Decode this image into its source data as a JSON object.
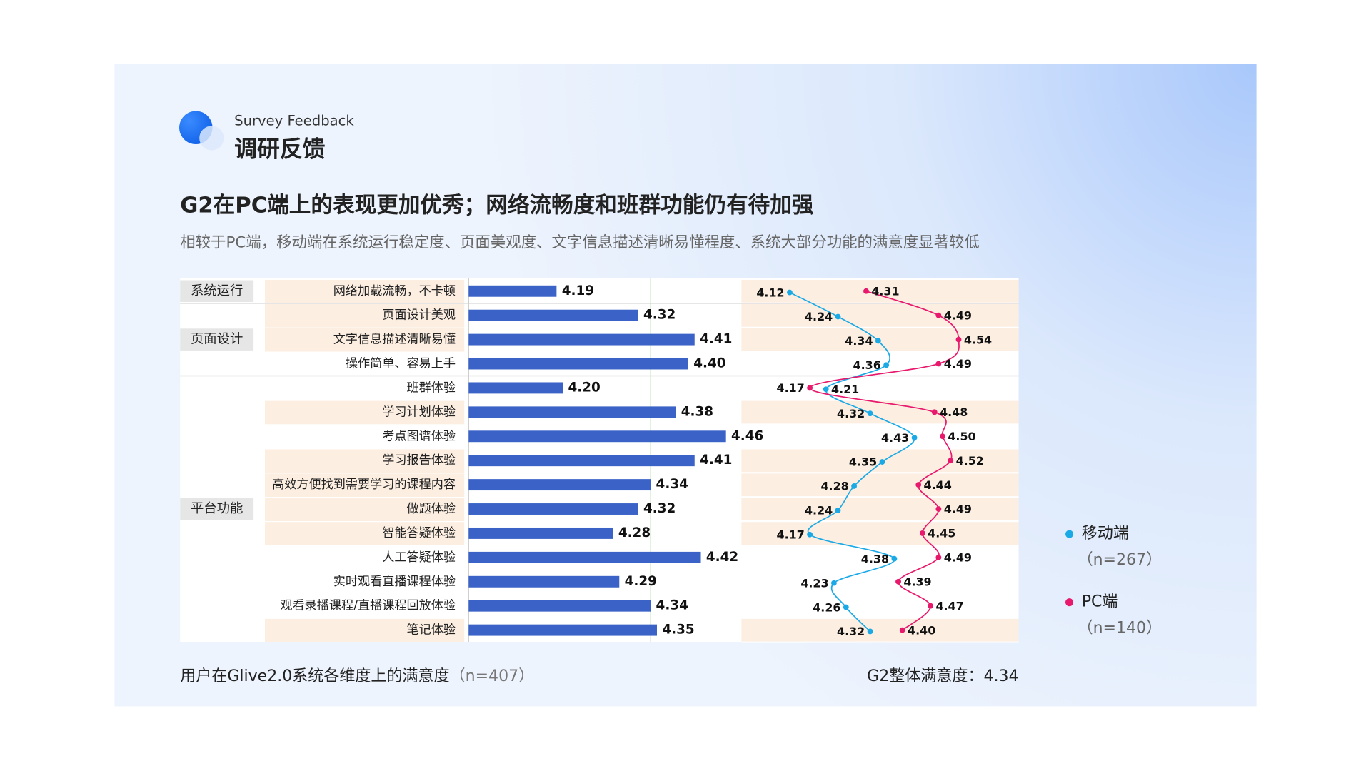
{
  "header": {
    "subtitle_en": "Survey Feedback",
    "section": "调研反馈"
  },
  "headline": "G2在PC端上的表现更加优秀；网络流畅度和班群功能仍有待加强",
  "summary": "相较于PC端，移动端在系统运行稳定度、页面美观度、文字信息描述清晰易懂程度、系统大部分功能的满意度显著较低",
  "chart_data": [
    {
      "type": "bar",
      "orientation": "horizontal",
      "color": "#3b63c7",
      "caption": "用户在Glive2.0系统各维度上的满意度",
      "sample": "（n=407）",
      "reference": {
        "label": "G2整体满意度：",
        "value": 4.34,
        "color": "#b9dcae"
      },
      "groups": [
        {
          "name": "系统运行",
          "categories": [
            "网络加载流畅，不卡顿"
          ]
        },
        {
          "name": "页面设计",
          "categories": [
            "页面设计美观",
            "文字信息描述清晰易懂",
            "操作简单、容易上手"
          ]
        },
        {
          "name": "平台功能",
          "categories": [
            "班群体验",
            "学习计划体验",
            "考点图谱体验",
            "学习报告体验",
            "高效方便找到需要学习的课程内容",
            "做题体验",
            "智能答疑体验",
            "人工答疑体验",
            "实时观看直播课程体验",
            "观看录播课程/直播课程回放体验",
            "笔记体验"
          ]
        }
      ],
      "values": [
        4.19,
        4.32,
        4.41,
        4.4,
        4.2,
        4.38,
        4.46,
        4.41,
        4.34,
        4.32,
        4.28,
        4.42,
        4.29,
        4.34,
        4.35
      ],
      "value_labels": [
        "4.19",
        "4.32",
        "4.41",
        "4.40",
        "4.20",
        "4.38",
        "4.46",
        "4.41",
        "4.34",
        "4.32",
        "4.28",
        "4.42",
        "4.29",
        "4.34",
        "4.35"
      ],
      "xlim": [
        4.05,
        4.5
      ]
    },
    {
      "type": "line",
      "orientation": "horizontal",
      "xlim": [
        4.1,
        4.6
      ],
      "series": [
        {
          "name": "移动端",
          "sample": "（n=267）",
          "color": "#1ba9e6",
          "values": [
            4.12,
            4.24,
            4.34,
            4.36,
            4.21,
            4.32,
            4.43,
            4.35,
            4.28,
            4.24,
            4.17,
            4.38,
            4.23,
            4.26,
            4.32
          ],
          "value_labels": [
            "4.12",
            "4.24",
            "4.34",
            "4.36",
            "4.21",
            "4.32",
            "4.43",
            "4.35",
            "4.28",
            "4.24",
            "4.17",
            "4.38",
            "4.23",
            "4.26",
            "4.32"
          ]
        },
        {
          "name": "PC端",
          "sample": "（n=140）",
          "color": "#e8186c",
          "values": [
            4.31,
            4.49,
            4.54,
            4.49,
            4.17,
            4.48,
            4.5,
            4.52,
            4.44,
            4.49,
            4.45,
            4.49,
            4.39,
            4.47,
            4.4
          ],
          "value_labels": [
            "4.31",
            "4.49",
            "4.54",
            "4.49",
            "4.17",
            "4.48",
            "4.50",
            "4.52",
            "4.44",
            "4.49",
            "4.45",
            "4.49",
            "4.39",
            "4.47",
            "4.40"
          ]
        }
      ]
    }
  ]
}
